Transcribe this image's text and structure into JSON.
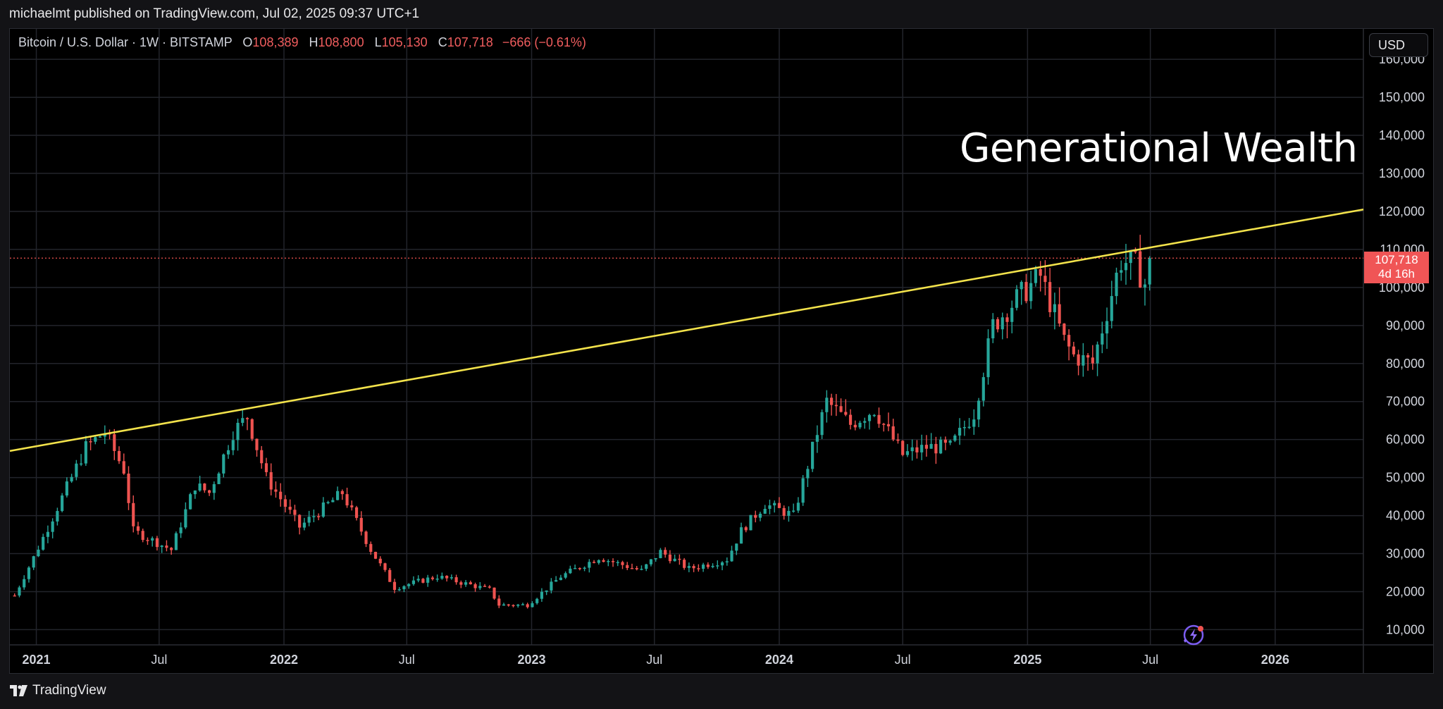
{
  "header": {
    "published": "michaelmt published on TradingView.com, Jul 02, 2025 09:37 UTC+1"
  },
  "footer": {
    "brand": "TradingView"
  },
  "toolbar": {
    "currency_button": "USD"
  },
  "legend": {
    "symbol": "Bitcoin / U.S. Dollar · 1W · BITSTAMP",
    "open_label": "O",
    "open": "108,389",
    "high_label": "H",
    "high": "108,800",
    "low_label": "L",
    "low": "105,130",
    "close_label": "C",
    "close": "107,718",
    "change": "−666 (−0.61%)"
  },
  "price_badge": {
    "price": "107,718",
    "countdown": "4d 16h"
  },
  "annotation": {
    "text": "Generational Wealth"
  },
  "colors": {
    "up": "#26a69a",
    "down": "#ef5350",
    "trendline": "#f2e24b",
    "background": "#000000",
    "grid": "#22242b",
    "price_line": "#ef5350"
  },
  "chart_data": {
    "type": "candlestick",
    "title": "Bitcoin / U.S. Dollar · 1W · BITSTAMP",
    "interval": "1W",
    "xlim": [
      "2020-11-23",
      "2026-05-11"
    ],
    "ylim": [
      6000,
      168000
    ],
    "y_ticks": [
      10000,
      20000,
      30000,
      40000,
      50000,
      60000,
      70000,
      80000,
      90000,
      100000,
      110000,
      120000,
      130000,
      140000,
      150000,
      160000
    ],
    "y_tick_labels": [
      "10,000",
      "20,000",
      "30,000",
      "40,000",
      "50,000",
      "60,000",
      "70,000",
      "80,000",
      "90,000",
      "100,000",
      "110,000",
      "120,000",
      "130,000",
      "140,000",
      "150,000",
      "160,000"
    ],
    "x_ticks": [
      {
        "date": "2021-01-01",
        "label": "2021",
        "major": true
      },
      {
        "date": "2021-07-01",
        "label": "Jul",
        "major": false
      },
      {
        "date": "2022-01-01",
        "label": "2022",
        "major": true
      },
      {
        "date": "2022-07-01",
        "label": "Jul",
        "major": false
      },
      {
        "date": "2023-01-01",
        "label": "2023",
        "major": true
      },
      {
        "date": "2023-07-01",
        "label": "Jul",
        "major": false
      },
      {
        "date": "2024-01-01",
        "label": "2024",
        "major": true
      },
      {
        "date": "2024-07-01",
        "label": "Jul",
        "major": false
      },
      {
        "date": "2025-01-01",
        "label": "2025",
        "major": true
      },
      {
        "date": "2025-07-01",
        "label": "Jul",
        "major": false
      },
      {
        "date": "2026-01-01",
        "label": "2026",
        "major": true
      }
    ],
    "last_price": 107718,
    "grid": true,
    "trendline": [
      {
        "date": "2020-11-23",
        "price": 57000
      },
      {
        "date": "2026-05-11",
        "price": 120500
      }
    ],
    "anchors": [
      {
        "date": "2020-11-30",
        "price": 19000
      },
      {
        "date": "2020-12-28",
        "price": 29000
      },
      {
        "date": "2021-02-22",
        "price": 50000
      },
      {
        "date": "2021-03-15",
        "price": 58000
      },
      {
        "date": "2021-04-12",
        "price": 62000
      },
      {
        "date": "2021-05-10",
        "price": 52000
      },
      {
        "date": "2021-05-24",
        "price": 36000
      },
      {
        "date": "2021-07-19",
        "price": 31000
      },
      {
        "date": "2021-08-23",
        "price": 48000
      },
      {
        "date": "2021-09-13",
        "price": 46000
      },
      {
        "date": "2021-10-18",
        "price": 62000
      },
      {
        "date": "2021-11-08",
        "price": 66000
      },
      {
        "date": "2021-12-06",
        "price": 50000
      },
      {
        "date": "2022-01-24",
        "price": 37000
      },
      {
        "date": "2022-03-28",
        "price": 46000
      },
      {
        "date": "2022-05-09",
        "price": 31000
      },
      {
        "date": "2022-06-13",
        "price": 21000
      },
      {
        "date": "2022-08-15",
        "price": 24000
      },
      {
        "date": "2022-10-31",
        "price": 20500
      },
      {
        "date": "2022-11-14",
        "price": 16500
      },
      {
        "date": "2022-12-26",
        "price": 16500
      },
      {
        "date": "2023-02-13",
        "price": 24000
      },
      {
        "date": "2023-04-10",
        "price": 29000
      },
      {
        "date": "2023-06-12",
        "price": 25500
      },
      {
        "date": "2023-07-10",
        "price": 30500
      },
      {
        "date": "2023-08-21",
        "price": 26000
      },
      {
        "date": "2023-10-16",
        "price": 28500
      },
      {
        "date": "2023-11-06",
        "price": 36000
      },
      {
        "date": "2023-12-11",
        "price": 43000
      },
      {
        "date": "2024-01-22",
        "price": 40000
      },
      {
        "date": "2024-02-26",
        "price": 62000
      },
      {
        "date": "2024-03-11",
        "price": 70000
      },
      {
        "date": "2024-04-15",
        "price": 64000
      },
      {
        "date": "2024-05-20",
        "price": 68000
      },
      {
        "date": "2024-07-01",
        "price": 56000
      },
      {
        "date": "2024-08-05",
        "price": 58000
      },
      {
        "date": "2024-09-09",
        "price": 58000
      },
      {
        "date": "2024-10-14",
        "price": 67000
      },
      {
        "date": "2024-11-11",
        "price": 90000
      },
      {
        "date": "2024-12-16",
        "price": 97000
      },
      {
        "date": "2025-01-20",
        "price": 103000
      },
      {
        "date": "2025-02-24",
        "price": 86000
      },
      {
        "date": "2025-03-10",
        "price": 82000
      },
      {
        "date": "2025-04-07",
        "price": 80000
      },
      {
        "date": "2025-05-12",
        "price": 103000
      },
      {
        "date": "2025-05-19",
        "price": 107000
      },
      {
        "date": "2025-06-09",
        "price": 106000
      },
      {
        "date": "2025-06-23",
        "price": 101000
      },
      {
        "date": "2025-06-30",
        "price": 107718
      }
    ]
  }
}
